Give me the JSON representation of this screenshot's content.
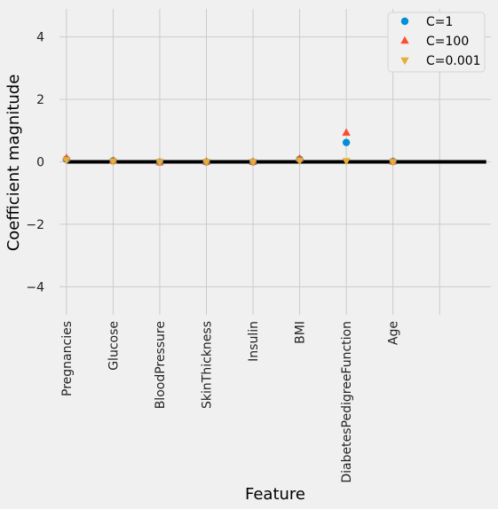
{
  "chart_data": {
    "type": "scatter",
    "title": "",
    "xlabel": "Feature",
    "ylabel": "Coefficient magnitude",
    "categories": [
      "Pregnancies",
      "Glucose",
      "BloodPressure",
      "SkinThickness",
      "Insulin",
      "BMI",
      "DiabetesPedigreeFunction",
      "Age"
    ],
    "ylim": [
      -4.9,
      4.9
    ],
    "yticks": [
      -4,
      -2,
      0,
      2,
      4
    ],
    "ytick_labels": [
      "−4",
      "−2",
      "0",
      "2",
      "4"
    ],
    "xlim": [
      -0.15,
      9.1
    ],
    "extra_x_gridline": 8,
    "hline": {
      "y": 0,
      "x_from": 0,
      "x_to": 9,
      "color": "#000000"
    },
    "grid": true,
    "legend_position": "top-right",
    "series": [
      {
        "name": "C=1",
        "marker": "circle",
        "color": "#008fd5",
        "values": [
          0.08,
          0.03,
          -0.01,
          -0.005,
          -0.005,
          0.08,
          0.62,
          0.01
        ]
      },
      {
        "name": "C=100",
        "marker": "triangle-up",
        "color": "#fc4f30",
        "values": [
          0.12,
          0.03,
          -0.02,
          0.0,
          -0.005,
          0.1,
          0.93,
          0.01
        ]
      },
      {
        "name": "C=0.001",
        "marker": "triangle-down",
        "color": "#e5ae38",
        "values": [
          0.06,
          0.02,
          0.0,
          0.0,
          0.0,
          0.04,
          0.03,
          0.0
        ]
      }
    ]
  }
}
